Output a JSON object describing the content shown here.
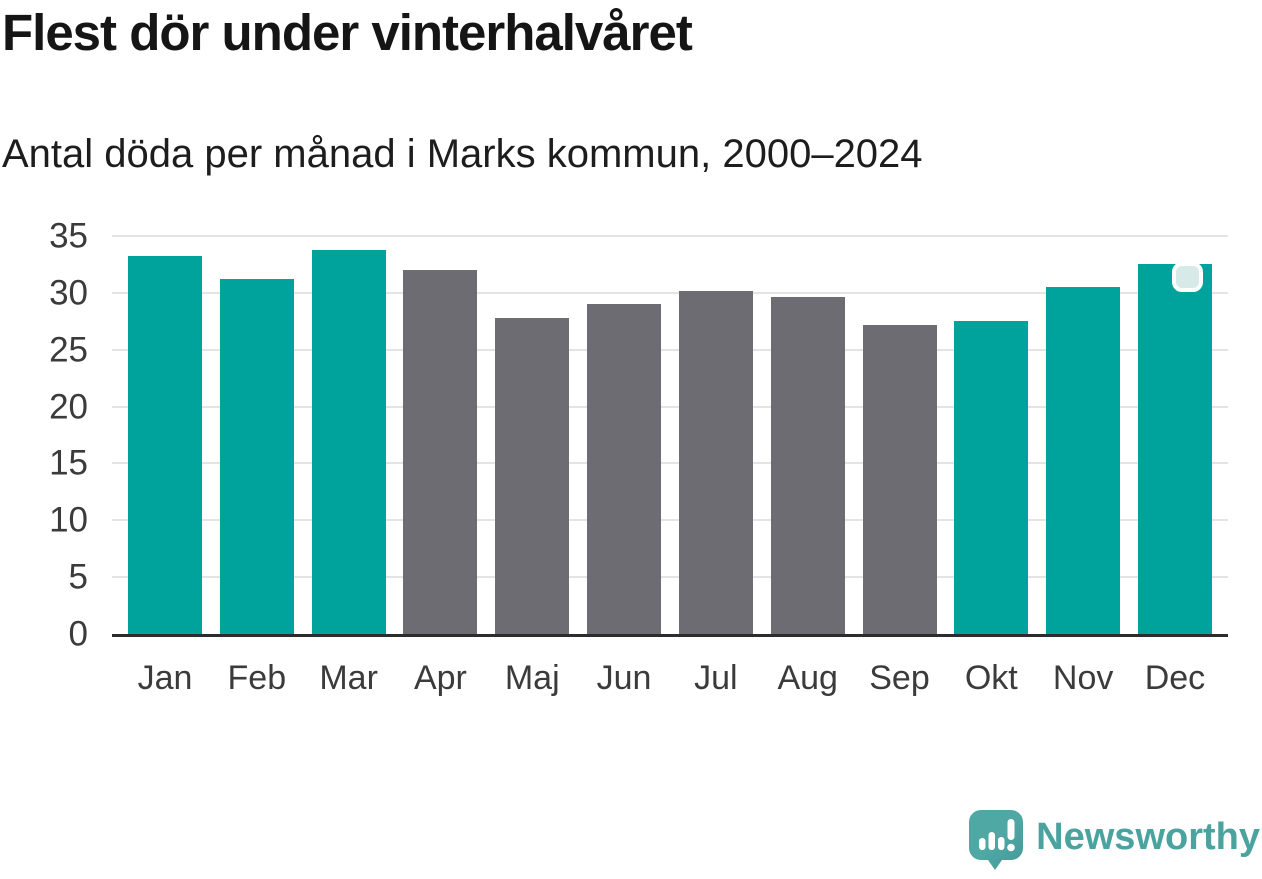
{
  "chart_data": {
    "type": "bar",
    "title": "Flest dör under vinterhalvåret",
    "subtitle": "Antal döda per månad i Marks kommun, 2000–2024",
    "categories": [
      "Jan",
      "Feb",
      "Mar",
      "Apr",
      "Maj",
      "Jun",
      "Jul",
      "Aug",
      "Sep",
      "Okt",
      "Nov",
      "Dec"
    ],
    "values": [
      33.2,
      31.2,
      33.8,
      32.0,
      27.8,
      29.0,
      30.2,
      29.6,
      27.2,
      27.5,
      30.5,
      32.5
    ],
    "bar_colors": [
      "teal",
      "teal",
      "teal",
      "gray",
      "gray",
      "gray",
      "gray",
      "gray",
      "gray",
      "teal",
      "teal",
      "teal"
    ],
    "palette": {
      "teal": "#00A39B",
      "gray": "#6D6C73"
    },
    "xlabel": "",
    "ylabel": "",
    "ylim": [
      0,
      35
    ],
    "yticks": [
      0,
      5,
      10,
      15,
      20,
      25,
      30,
      35
    ],
    "grid": true,
    "legend": "none",
    "highlight": {
      "category": "Dec",
      "index": 11,
      "marker_fill": "#D7EAE8",
      "marker_border": "#FFFFFF"
    }
  },
  "footer": {
    "brand": "Newsworthy",
    "logo_icon": "newsworthy-speech-bubble-bar-chart-icon",
    "brand_color": "#4BA3A0"
  }
}
